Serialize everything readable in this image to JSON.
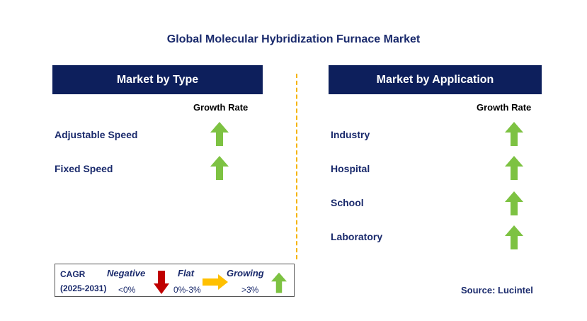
{
  "title": "Global Molecular Hybridization Furnace Market",
  "left_panel": {
    "header": "Market by Type",
    "growth_label": "Growth Rate",
    "items": [
      {
        "label": "Adjustable Speed",
        "trend": "growing"
      },
      {
        "label": "Fixed Speed",
        "trend": "growing"
      }
    ]
  },
  "right_panel": {
    "header": "Market by Application",
    "growth_label": "Growth Rate",
    "items": [
      {
        "label": "Industry",
        "trend": "growing"
      },
      {
        "label": "Hospital",
        "trend": "growing"
      },
      {
        "label": "School",
        "trend": "growing"
      },
      {
        "label": "Laboratory",
        "trend": "growing"
      }
    ]
  },
  "legend": {
    "cagr_label": "CAGR",
    "period": "(2025-2031)",
    "negative_label": "Negative",
    "negative_value": "<0%",
    "flat_label": "Flat",
    "flat_value": "0%-3%",
    "growing_label": "Growing",
    "growing_value": ">3%"
  },
  "source": "Source: Lucintel",
  "colors": {
    "header_bg": "#0d1f5c",
    "text": "#1a2a6c",
    "growing": "#7dc242",
    "negative": "#c00000",
    "flat": "#ffc000",
    "divider": "#f5b400"
  },
  "icons": {
    "growing": "up-arrow-icon",
    "negative": "down-arrow-icon",
    "flat": "right-arrow-icon"
  }
}
